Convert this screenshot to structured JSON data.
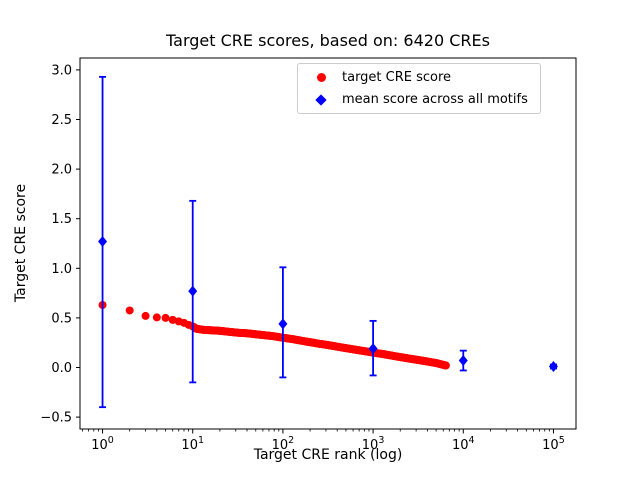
{
  "chart_data": {
    "type": "scatter",
    "title": "Target CRE scores, based on: 6420 CREs",
    "xlabel": "Target CRE rank (log)",
    "ylabel": "Target CRE score",
    "x_scale": "log",
    "xlim_log10": [
      -0.25,
      5.25
    ],
    "ylim": [
      -0.62,
      3.12
    ],
    "x_ticks_log10": [
      0,
      1,
      2,
      3,
      4,
      5
    ],
    "y_ticks": [
      3.0,
      2.5,
      2.0,
      1.5,
      1.0,
      0.5,
      0.0,
      -0.5
    ],
    "grid": false,
    "legend": {
      "position": "upper center-right inside axes",
      "entries": [
        {
          "label": "target CRE score",
          "marker": "circle",
          "color": "#ff0000"
        },
        {
          "label": "mean score across all motifs",
          "marker": "diamond",
          "color": "#0000ff"
        }
      ]
    },
    "series": [
      {
        "name": "target CRE score",
        "type": "dense-scatter",
        "marker": "circle",
        "color": "#ff0000",
        "points": [
          [
            1,
            0.63
          ],
          [
            2,
            0.575
          ],
          [
            3,
            0.52
          ],
          [
            4,
            0.505
          ],
          [
            5,
            0.5
          ],
          [
            6,
            0.48
          ],
          [
            7,
            0.465
          ],
          [
            8,
            0.45
          ],
          [
            9,
            0.43
          ],
          [
            10,
            0.415
          ],
          [
            11,
            0.39
          ],
          [
            13,
            0.38
          ],
          [
            16,
            0.375
          ],
          [
            20,
            0.37
          ],
          [
            25,
            0.36
          ],
          [
            32,
            0.35
          ],
          [
            40,
            0.345
          ],
          [
            50,
            0.335
          ],
          [
            63,
            0.325
          ],
          [
            79,
            0.315
          ],
          [
            100,
            0.3
          ],
          [
            130,
            0.285
          ],
          [
            160,
            0.27
          ],
          [
            200,
            0.255
          ],
          [
            250,
            0.24
          ],
          [
            320,
            0.225
          ],
          [
            400,
            0.21
          ],
          [
            500,
            0.195
          ],
          [
            630,
            0.18
          ],
          [
            800,
            0.165
          ],
          [
            1000,
            0.15
          ],
          [
            1300,
            0.135
          ],
          [
            1600,
            0.12
          ],
          [
            2000,
            0.105
          ],
          [
            2500,
            0.09
          ],
          [
            3200,
            0.075
          ],
          [
            4000,
            0.06
          ],
          [
            5000,
            0.045
          ],
          [
            6420,
            0.02
          ]
        ]
      },
      {
        "name": "mean score across all motifs",
        "type": "errorbar",
        "marker": "diamond",
        "color": "#0000ff",
        "points": [
          {
            "x": 1,
            "y": 1.27,
            "err_lo": -0.4,
            "err_hi": 2.93
          },
          {
            "x": 10,
            "y": 0.77,
            "err_lo": -0.15,
            "err_hi": 1.68
          },
          {
            "x": 100,
            "y": 0.44,
            "err_lo": -0.1,
            "err_hi": 1.01
          },
          {
            "x": 1000,
            "y": 0.19,
            "err_lo": -0.08,
            "err_hi": 0.47
          },
          {
            "x": 10000,
            "y": 0.07,
            "err_lo": -0.03,
            "err_hi": 0.17
          },
          {
            "x": 100000,
            "y": 0.01,
            "err_lo": -0.01,
            "err_hi": 0.03
          }
        ]
      }
    ]
  }
}
